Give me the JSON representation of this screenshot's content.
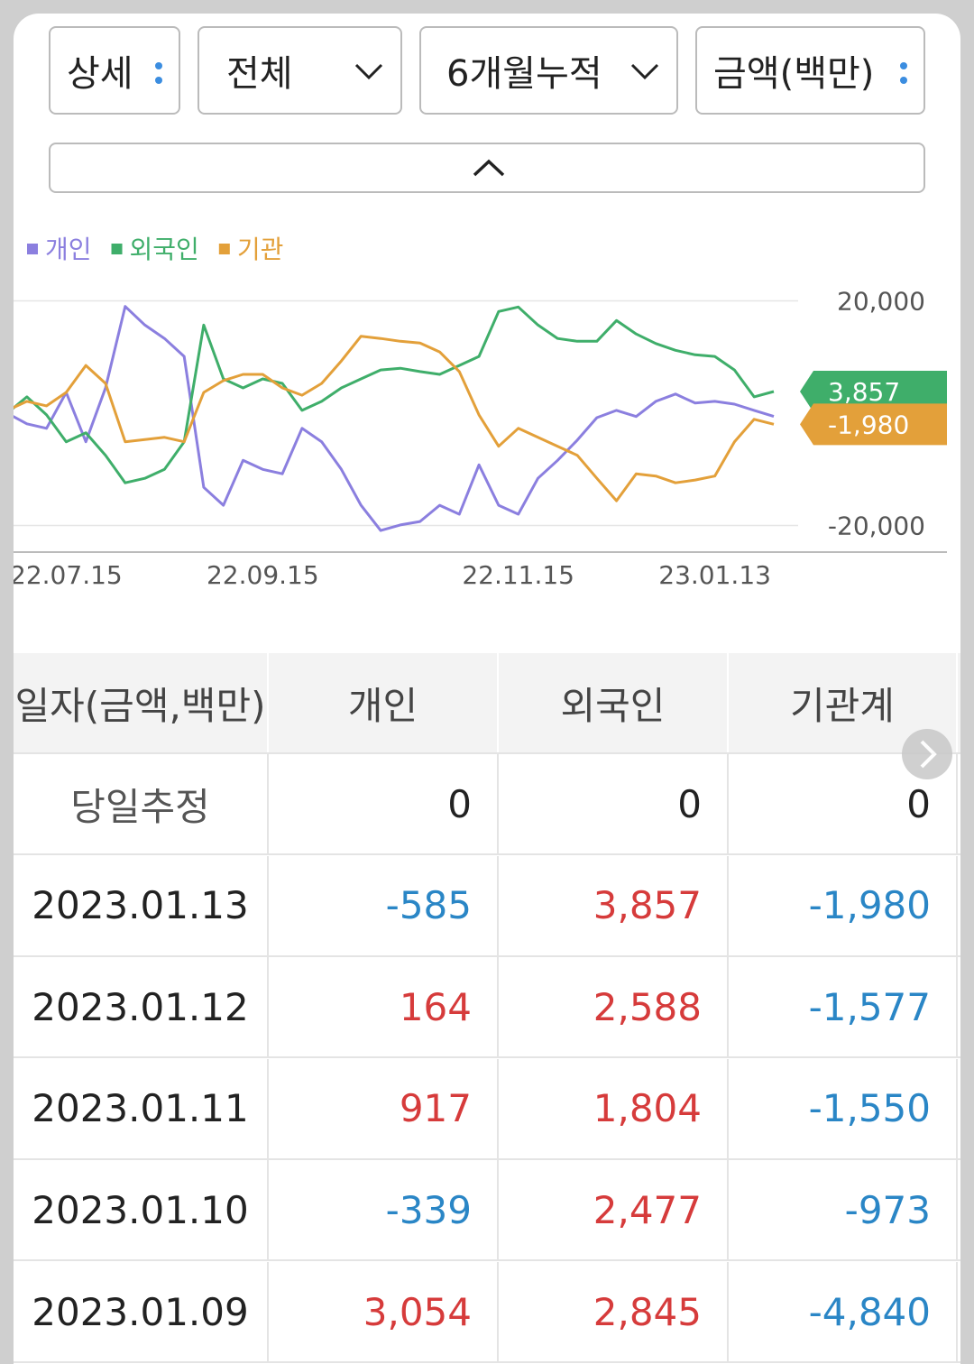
{
  "controls": {
    "detail": "상세",
    "scope": "전체",
    "period": "6개월누적",
    "unit": "금액(백만)"
  },
  "chart_data": {
    "type": "line",
    "categories": [
      null,
      null,
      null,
      "22.07.15",
      null,
      null,
      null,
      null,
      null,
      null,
      null,
      null,
      null,
      "22.09.15",
      null,
      null,
      null,
      null,
      null,
      null,
      null,
      null,
      null,
      null,
      null,
      null,
      "22.11.15",
      null,
      null,
      null,
      null,
      null,
      null,
      null,
      null,
      null,
      "23.01.13",
      null,
      null,
      null
    ],
    "series": [
      {
        "name": "개인",
        "color": "#8b7fdf",
        "values": [
          0,
          -1900,
          -2700,
          3700,
          -5100,
          4500,
          19000,
          15700,
          13300,
          10100,
          -13200,
          -16400,
          -8400,
          -10000,
          -10800,
          -2700,
          -5100,
          -10000,
          -16400,
          -20900,
          -19900,
          -19300,
          -16400,
          -18000,
          -9200,
          -16400,
          -18000,
          -11600,
          -8400,
          -4800,
          -800,
          500,
          -600,
          2100,
          3400,
          1800,
          2100,
          1600,
          500,
          -585
        ]
      },
      {
        "name": "외국인",
        "color": "#3fae6a",
        "values": [
          0,
          2900,
          -300,
          -5100,
          -3500,
          -7500,
          -12400,
          -11600,
          -10000,
          -5100,
          15700,
          6100,
          4500,
          6100,
          5300,
          500,
          2100,
          4500,
          6100,
          7700,
          8000,
          7400,
          6900,
          8500,
          10100,
          18100,
          18900,
          15700,
          13300,
          12800,
          12800,
          16500,
          14100,
          12400,
          11200,
          10400,
          10100,
          7700,
          2900,
          3857
        ],
        "value_labels": [
          null,
          null,
          null,
          null,
          null,
          null,
          null,
          null,
          null,
          null,
          null,
          null,
          null,
          null,
          null,
          null,
          null,
          null,
          null,
          null,
          null,
          null,
          null,
          null,
          null,
          null,
          null,
          null,
          null,
          null,
          null,
          null,
          null,
          null,
          null,
          null,
          null,
          null,
          null,
          "3,857"
        ]
      },
      {
        "name": "기관",
        "color": "#e3a03a",
        "values": [
          500,
          2100,
          1300,
          3700,
          8500,
          5300,
          -5100,
          -4700,
          -4300,
          -5100,
          3700,
          5800,
          6900,
          6900,
          4500,
          3200,
          5300,
          9300,
          13700,
          13300,
          12800,
          12500,
          10900,
          7400,
          -300,
          -5900,
          -2700,
          -4300,
          -5900,
          -7500,
          -11600,
          -15600,
          -10800,
          -11200,
          -12400,
          -11900,
          -11200,
          -5100,
          -1100,
          -1980
        ],
        "value_labels": [
          null,
          null,
          null,
          null,
          null,
          null,
          null,
          null,
          null,
          null,
          null,
          null,
          null,
          null,
          null,
          null,
          null,
          null,
          null,
          null,
          null,
          null,
          null,
          null,
          null,
          null,
          null,
          null,
          null,
          null,
          null,
          null,
          null,
          null,
          null,
          null,
          null,
          null,
          null,
          "-1,980"
        ]
      }
    ],
    "ylim": [
      -24000,
      24000
    ],
    "yticks": [
      {
        "value": 20000,
        "label": "20,000"
      },
      {
        "value": -20000,
        "label": "-20,000"
      }
    ],
    "grid": true
  },
  "table": {
    "header": [
      "일자(금액,백만)",
      "개인",
      "외국인",
      "기관계"
    ],
    "rows": [
      [
        "당일추정",
        "0",
        "0",
        "0"
      ],
      [
        "2023.01.13",
        "-585",
        "3,857",
        "-1,980"
      ],
      [
        "2023.01.12",
        "164",
        "2,588",
        "-1,577"
      ],
      [
        "2023.01.11",
        "917",
        "1,804",
        "-1,550"
      ],
      [
        "2023.01.10",
        "-339",
        "2,477",
        "-973"
      ],
      [
        "2023.01.09",
        "3,054",
        "2,845",
        "-4,840"
      ]
    ]
  }
}
